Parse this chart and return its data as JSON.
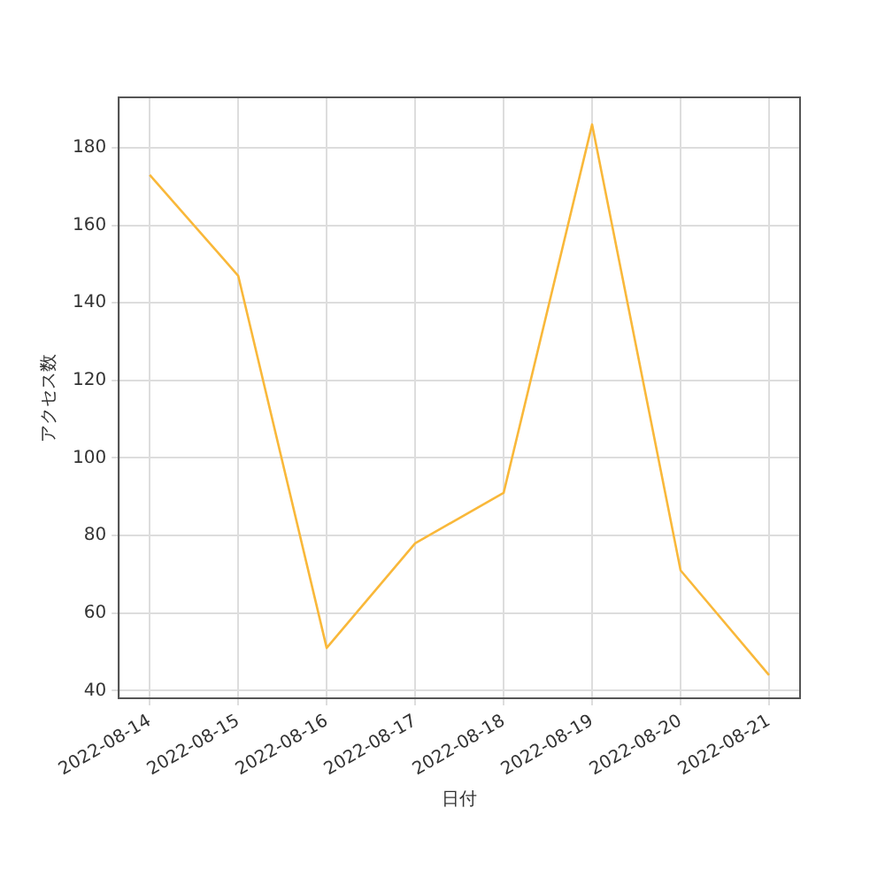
{
  "chart_data": {
    "type": "line",
    "xlabel": "日付",
    "ylabel": "アクセス数",
    "x": [
      "2022-08-14",
      "2022-08-15",
      "2022-08-16",
      "2022-08-17",
      "2022-08-18",
      "2022-08-19",
      "2022-08-20",
      "2022-08-21"
    ],
    "series": [
      {
        "color": "#f9b83a",
        "values": [
          173,
          147,
          51,
          78,
          91,
          186,
          71,
          44
        ]
      }
    ],
    "xlim": [
      "2022-08-13T15:36",
      "2022-08-21T08:24"
    ],
    "xticks": [
      "2022-08-14",
      "2022-08-15",
      "2022-08-16",
      "2022-08-17",
      "2022-08-18",
      "2022-08-19",
      "2022-08-20",
      "2022-08-21"
    ],
    "ylim": [
      38,
      193
    ],
    "yticks": [
      40,
      60,
      80,
      100,
      120,
      140,
      160,
      180
    ],
    "grid": true,
    "legend": false,
    "marker": "none",
    "line_style": "solid"
  }
}
